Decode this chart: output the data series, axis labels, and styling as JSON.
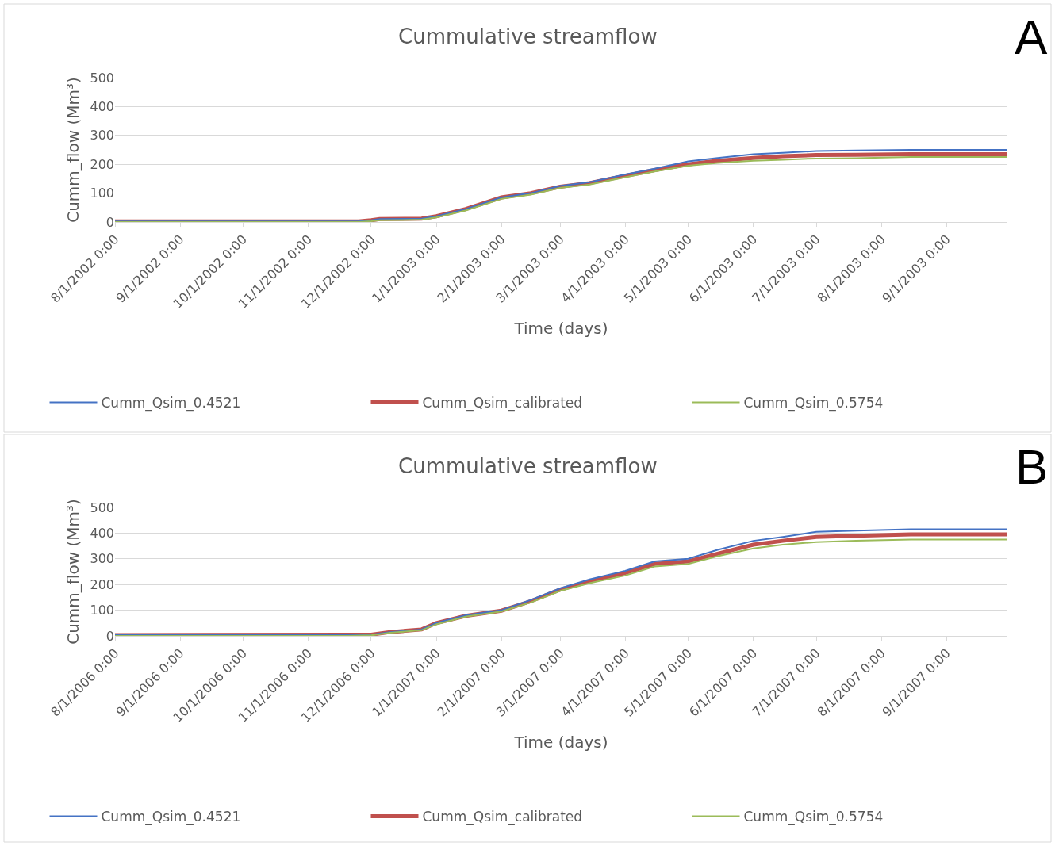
{
  "chart_data": [
    {
      "type": "line",
      "title": "Cummulative streamflow",
      "xlabel": "Time (days)",
      "ylabel": "Cumm_flow (Mm³)",
      "annotations": [
        "A"
      ],
      "grid": "y",
      "legend": "bottom",
      "xlim": [
        "2002-08-01",
        "2003-09-30"
      ],
      "ylim": [
        0,
        500
      ],
      "yticks": [
        0,
        100,
        200,
        300,
        400,
        500
      ],
      "xticks": [
        {
          "value": "2002-08-01",
          "label": "8/1/2002 0:00"
        },
        {
          "value": "2002-09-01",
          "label": "9/1/2002 0:00"
        },
        {
          "value": "2002-10-01",
          "label": "10/1/2002 0:00"
        },
        {
          "value": "2002-11-01",
          "label": "11/1/2002 0:00"
        },
        {
          "value": "2002-12-01",
          "label": "12/1/2002 0:00"
        },
        {
          "value": "2003-01-01",
          "label": "1/1/2003 0:00"
        },
        {
          "value": "2003-02-01",
          "label": "2/1/2003 0:00"
        },
        {
          "value": "2003-03-01",
          "label": "3/1/2003 0:00"
        },
        {
          "value": "2003-04-01",
          "label": "4/1/2003 0:00"
        },
        {
          "value": "2003-05-01",
          "label": "5/1/2003 0:00"
        },
        {
          "value": "2003-06-01",
          "label": "6/1/2003 0:00"
        },
        {
          "value": "2003-07-01",
          "label": "7/1/2003 0:00"
        },
        {
          "value": "2003-08-01",
          "label": "8/1/2003 0:00"
        },
        {
          "value": "2003-09-01",
          "label": "9/1/2003 0:00"
        }
      ],
      "x": [
        "2002-08-01",
        "2002-11-25",
        "2002-12-01",
        "2002-12-05",
        "2002-12-25",
        "2003-01-01",
        "2003-01-15",
        "2003-02-01",
        "2003-02-15",
        "2003-03-01",
        "2003-03-15",
        "2003-04-01",
        "2003-04-15",
        "2003-05-01",
        "2003-05-15",
        "2003-06-01",
        "2003-06-15",
        "2003-07-01",
        "2003-07-20",
        "2003-08-15",
        "2003-09-30"
      ],
      "series": [
        {
          "name": "Cumm_Qsim_0.4521",
          "color": "#4472c4",
          "values": [
            2,
            2,
            6,
            10,
            12,
            20,
            45,
            85,
            100,
            125,
            138,
            165,
            185,
            210,
            222,
            235,
            240,
            246,
            248,
            250,
            250
          ]
        },
        {
          "name": "Cumm_Qsim_calibrated",
          "color": "#c0504d",
          "values": [
            2,
            2,
            6,
            10,
            12,
            20,
            45,
            85,
            100,
            122,
            135,
            160,
            180,
            200,
            212,
            222,
            228,
            232,
            233,
            235,
            235
          ]
        },
        {
          "name": "Cumm_Qsim_0.5754",
          "color": "#9bbb59",
          "values": [
            0,
            0,
            3,
            6,
            8,
            16,
            40,
            80,
            95,
            118,
            130,
            155,
            175,
            195,
            205,
            212,
            216,
            220,
            221,
            225,
            225
          ]
        }
      ]
    },
    {
      "type": "line",
      "title": "Cummulative streamflow",
      "xlabel": "Time (days)",
      "ylabel": "Cumm_flow (Mm³)",
      "annotations": [
        "B"
      ],
      "grid": "y",
      "legend": "bottom",
      "xlim": [
        "2006-08-01",
        "2007-09-30"
      ],
      "ylim": [
        0,
        500
      ],
      "yticks": [
        0,
        100,
        200,
        300,
        400,
        500
      ],
      "xticks": [
        {
          "value": "2006-08-01",
          "label": "8/1/2006 0:00"
        },
        {
          "value": "2006-09-01",
          "label": "9/1/2006 0:00"
        },
        {
          "value": "2006-10-01",
          "label": "10/1/2006 0:00"
        },
        {
          "value": "2006-11-01",
          "label": "11/1/2006 0:00"
        },
        {
          "value": "2006-12-01",
          "label": "12/1/2006 0:00"
        },
        {
          "value": "2007-01-01",
          "label": "1/1/2007 0:00"
        },
        {
          "value": "2007-02-01",
          "label": "2/1/2007 0:00"
        },
        {
          "value": "2007-03-01",
          "label": "3/1/2007 0:00"
        },
        {
          "value": "2007-04-01",
          "label": "4/1/2007 0:00"
        },
        {
          "value": "2007-05-01",
          "label": "5/1/2007 0:00"
        },
        {
          "value": "2007-06-01",
          "label": "6/1/2007 0:00"
        },
        {
          "value": "2007-07-01",
          "label": "7/1/2007 0:00"
        },
        {
          "value": "2007-08-01",
          "label": "8/1/2007 0:00"
        },
        {
          "value": "2007-09-01",
          "label": "9/1/2007 0:00"
        }
      ],
      "x": [
        "2006-08-01",
        "2006-11-20",
        "2006-12-01",
        "2006-12-10",
        "2006-12-25",
        "2007-01-01",
        "2007-01-15",
        "2007-02-01",
        "2007-02-15",
        "2007-03-01",
        "2007-03-15",
        "2007-04-01",
        "2007-04-15",
        "2007-05-01",
        "2007-05-15",
        "2007-06-01",
        "2007-06-15",
        "2007-07-01",
        "2007-07-20",
        "2007-08-15",
        "2007-09-30"
      ],
      "series": [
        {
          "name": "Cumm_Qsim_0.4521",
          "color": "#4472c4",
          "values": [
            3,
            5,
            5,
            15,
            25,
            50,
            80,
            100,
            140,
            185,
            220,
            253,
            290,
            300,
            335,
            370,
            385,
            405,
            410,
            415,
            415
          ]
        },
        {
          "name": "Cumm_Qsim_calibrated",
          "color": "#c0504d",
          "values": [
            3,
            5,
            5,
            15,
            25,
            50,
            78,
            98,
            135,
            180,
            212,
            245,
            280,
            290,
            320,
            355,
            370,
            385,
            390,
            395,
            395
          ]
        },
        {
          "name": "Cumm_Qsim_0.5754",
          "color": "#9bbb59",
          "values": [
            0,
            0,
            2,
            12,
            22,
            45,
            75,
            95,
            130,
            175,
            205,
            235,
            270,
            280,
            310,
            340,
            355,
            365,
            370,
            375,
            375
          ]
        }
      ]
    }
  ]
}
